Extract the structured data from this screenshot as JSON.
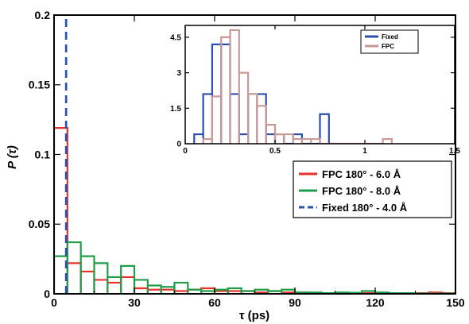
{
  "chart_data": [
    {
      "type": "histogram",
      "xlabel": "τ (ps)",
      "ylabel": "P (τ)",
      "xlim": [
        0,
        150
      ],
      "ylim": [
        0,
        0.2
      ],
      "xticks": [
        "0",
        "30",
        "60",
        "90",
        "120",
        "150"
      ],
      "yticks": [
        "0",
        "0.05",
        "0.1",
        "0.15",
        "0.2"
      ],
      "grid": false,
      "legend_position": "middle-right",
      "series": [
        {
          "name": "FPC 180° - 6.0 Å",
          "color": "#e8322a",
          "bin_width": 5,
          "bin_starts": [
            0,
            5,
            10,
            15,
            20,
            25,
            30,
            35,
            40,
            45,
            50,
            55,
            60,
            65,
            70,
            75,
            80,
            85,
            90,
            95,
            100,
            105,
            110,
            115,
            120,
            125,
            130,
            135,
            140,
            145
          ],
          "values": [
            0.119,
            0.022,
            0.016,
            0.01,
            0.008,
            0.012,
            0.004,
            0.003,
            0.003,
            0.002,
            0.003,
            0.004,
            0.002,
            0.002,
            0.002,
            0.001,
            0.002,
            0.001,
            0.001,
            0.0008,
            0.0005,
            0.0008,
            0.0005,
            0.0005,
            0.0003,
            0.0005,
            0.0002,
            0.0005,
            0.001,
            0.0005
          ]
        },
        {
          "name": "FPC 180° - 8.0 Å",
          "color": "#1e9e48",
          "bin_width": 5,
          "bin_starts": [
            0,
            5,
            10,
            15,
            20,
            25,
            30,
            35,
            40,
            45,
            50,
            55,
            60,
            65,
            70,
            75,
            80,
            85,
            90,
            95,
            100,
            105,
            110,
            115,
            120,
            125,
            130,
            135,
            140,
            145
          ],
          "values": [
            0.027,
            0.037,
            0.027,
            0.022,
            0.012,
            0.02,
            0.01,
            0.006,
            0.005,
            0.008,
            0.003,
            0.002,
            0.003,
            0.004,
            0.002,
            0.003,
            0.002,
            0.003,
            0.001,
            0.001,
            0.0005,
            0.001,
            0.0008,
            0.002,
            0.001,
            0.0005,
            0.0005,
            0.0002,
            0.0002,
            0.0002
          ]
        },
        {
          "name": "Fixed 180° - 4.0 Å",
          "color": "#2b4fb0",
          "style": "dashed",
          "x": [
            4.5,
            4.5
          ],
          "y": [
            0,
            0.2
          ]
        }
      ]
    },
    {
      "type": "histogram",
      "placement": "inset",
      "xlabel": "",
      "ylabel": "",
      "xlim": [
        0,
        1.5
      ],
      "ylim": [
        0,
        5
      ],
      "xticks": [
        "0",
        "0.5",
        "1",
        "1.5"
      ],
      "yticks": [
        "0",
        "1.5",
        "3",
        "4.5"
      ],
      "legend_position": "top-right",
      "series": [
        {
          "name": "Fixed",
          "color": "#2b4fb0",
          "bin_width": 0.05,
          "bin_starts": [
            0.05,
            0.1,
            0.15,
            0.2,
            0.25,
            0.3,
            0.35,
            0.4,
            0.45,
            0.5,
            0.55,
            0.6,
            0.65,
            0.7,
            0.75,
            0.8
          ],
          "values": [
            0.4,
            2.1,
            4.2,
            4.2,
            2.1,
            0.4,
            2.1,
            2.1,
            0.4,
            0.4,
            0.0,
            0.4,
            0.0,
            0.0,
            1.25,
            0.0
          ]
        },
        {
          "name": "FPC",
          "color": "#c79a96",
          "bin_width": 0.05,
          "bin_starts": [
            0.1,
            0.15,
            0.2,
            0.25,
            0.3,
            0.35,
            0.4,
            0.45,
            0.5,
            0.55,
            0.6,
            0.65,
            0.7,
            0.75,
            0.8,
            0.85,
            0.9,
            0.95,
            1.0,
            1.05,
            1.1
          ],
          "values": [
            0.2,
            2.0,
            4.5,
            4.8,
            3.0,
            2.1,
            1.6,
            0.8,
            0.4,
            0.4,
            0.2,
            0.2,
            0.2,
            0.0,
            0.0,
            0.0,
            0.0,
            0.0,
            0.0,
            0.0,
            0.2
          ]
        }
      ]
    }
  ]
}
